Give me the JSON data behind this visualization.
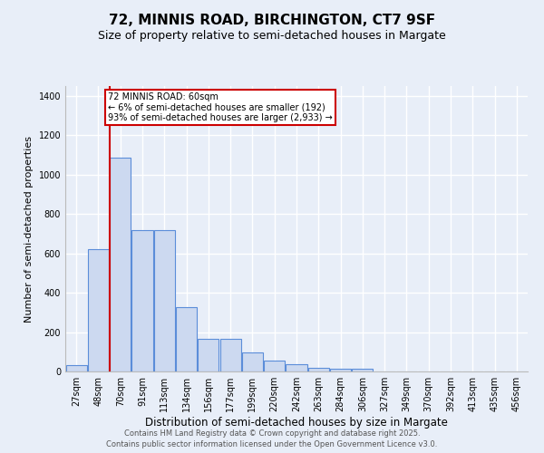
{
  "title1": "72, MINNIS ROAD, BIRCHINGTON, CT7 9SF",
  "title2": "Size of property relative to semi-detached houses in Margate",
  "xlabel": "Distribution of semi-detached houses by size in Margate",
  "ylabel": "Number of semi-detached properties",
  "categories": [
    "27sqm",
    "48sqm",
    "70sqm",
    "91sqm",
    "113sqm",
    "134sqm",
    "156sqm",
    "177sqm",
    "199sqm",
    "220sqm",
    "242sqm",
    "263sqm",
    "284sqm",
    "306sqm",
    "327sqm",
    "349sqm",
    "370sqm",
    "392sqm",
    "413sqm",
    "435sqm",
    "456sqm"
  ],
  "values": [
    30,
    620,
    1085,
    720,
    720,
    325,
    165,
    165,
    95,
    55,
    35,
    20,
    15,
    12,
    0,
    0,
    0,
    0,
    0,
    0,
    0
  ],
  "bar_color": "#ccd9f0",
  "bar_edge_color": "#5b8dd9",
  "background_color": "#e8eef8",
  "grid_color": "#d0d8e8",
  "red_line_x": 1.5,
  "annotation_title": "72 MINNIS ROAD: 60sqm",
  "annotation_line1": "← 6% of semi-detached houses are smaller (192)",
  "annotation_line2": "93% of semi-detached houses are larger (2,933) →",
  "annotation_box_color": "#ffffff",
  "annotation_box_edge_color": "#cc0000",
  "footer1": "Contains HM Land Registry data © Crown copyright and database right 2025.",
  "footer2": "Contains public sector information licensed under the Open Government Licence v3.0.",
  "ylim": [
    0,
    1450
  ],
  "title1_fontsize": 11,
  "title2_fontsize": 9,
  "xlabel_fontsize": 8.5,
  "ylabel_fontsize": 8,
  "tick_fontsize": 7,
  "footer_fontsize": 6,
  "ann_fontsize": 7
}
